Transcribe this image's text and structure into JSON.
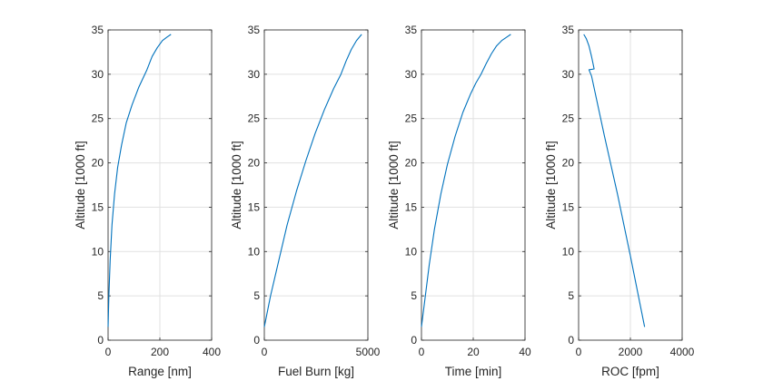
{
  "figure": {
    "background": "#ffffff"
  },
  "style": {
    "line_color": "#0072BD",
    "grid_color": "#e1e1e1",
    "axis_color": "#262626"
  },
  "chart_data": [
    {
      "type": "line",
      "xlabel": "Range [nm]",
      "ylabel": "Altitude [1000 ft]",
      "xlim": [
        0,
        400
      ],
      "ylim": [
        0,
        35
      ],
      "xticks": [
        0,
        200,
        400
      ],
      "yticks": [
        0,
        5,
        10,
        15,
        20,
        25,
        30,
        35
      ],
      "grid": true,
      "x": [
        0,
        3,
        8,
        15,
        25,
        37,
        52,
        70,
        92,
        118,
        150,
        170,
        190,
        210,
        228,
        243
      ],
      "y": [
        1.5,
        5,
        9,
        13,
        16.5,
        19.5,
        22,
        24.5,
        26.5,
        28.5,
        30.5,
        32,
        33,
        33.8,
        34.2,
        34.5
      ]
    },
    {
      "type": "line",
      "xlabel": "Fuel Burn [kg]",
      "ylabel": "Altitude [1000 ft]",
      "xlim": [
        0,
        5000
      ],
      "ylim": [
        0,
        35
      ],
      "xticks": [
        0,
        5000
      ],
      "yticks": [
        0,
        5,
        10,
        15,
        20,
        25,
        30,
        35
      ],
      "grid": true,
      "x": [
        0,
        300,
        700,
        1100,
        1550,
        2000,
        2450,
        2900,
        3350,
        3700,
        3950,
        4200,
        4450,
        4700
      ],
      "y": [
        1.5,
        5,
        9,
        13,
        16.8,
        20.2,
        23.3,
        26,
        28.4,
        30,
        31.5,
        32.8,
        33.8,
        34.5
      ]
    },
    {
      "type": "line",
      "xlabel": "Time [min]",
      "ylabel": "Altitude [1000 ft]",
      "xlim": [
        0,
        40
      ],
      "ylim": [
        0,
        35
      ],
      "xticks": [
        0,
        20,
        40
      ],
      "yticks": [
        0,
        5,
        10,
        15,
        20,
        25,
        30,
        35
      ],
      "grid": true,
      "x": [
        0,
        1.5,
        3,
        5,
        7.5,
        10,
        13,
        16,
        19,
        21,
        23,
        25,
        27,
        29,
        31,
        33,
        34.5
      ],
      "y": [
        1.5,
        5,
        8.5,
        12.5,
        16.5,
        19.8,
        23,
        25.7,
        27.8,
        29,
        30,
        31.2,
        32.3,
        33.2,
        33.8,
        34.2,
        34.5
      ]
    },
    {
      "type": "line",
      "xlabel": "ROC [fpm]",
      "ylabel": "Altitude [1000 ft]",
      "xlim": [
        0,
        4000
      ],
      "ylim": [
        0,
        35
      ],
      "xticks": [
        0,
        2000,
        4000
      ],
      "yticks": [
        0,
        5,
        10,
        15,
        20,
        25,
        30,
        35
      ],
      "grid": true,
      "x": [
        2550,
        2000,
        1500,
        1000,
        500,
        400,
        600,
        500,
        400,
        300,
        200
      ],
      "y": [
        1.5,
        9.5,
        16.5,
        23,
        29.8,
        30.5,
        30.6,
        32,
        33.2,
        34,
        34.5
      ]
    }
  ]
}
